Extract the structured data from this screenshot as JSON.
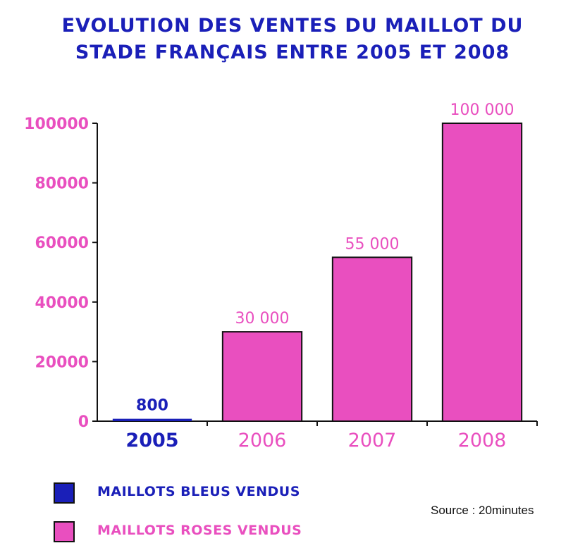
{
  "title_lines": [
    "EVOLUTION DES VENTES DU MAILLOT DU",
    "STADE FRANÇAIS ENTRE 2005 ET 2008"
  ],
  "colors": {
    "title": "#1a1fb8",
    "blue": "#1a1fb8",
    "pink": "#e94fbf",
    "axis": "#111111"
  },
  "chart_data": {
    "type": "bar",
    "title": "EVOLUTION DES VENTES DU MAILLOT DU STADE FRANÇAIS ENTRE 2005 ET 2008",
    "xlabel": "",
    "ylabel": "",
    "ylim": [
      0,
      100000
    ],
    "yticks": [
      "0",
      "20000",
      "40000",
      "60000",
      "80000",
      "100000"
    ],
    "categories": [
      "2005",
      "2006",
      "2007",
      "2008"
    ],
    "bars": [
      {
        "category": "2005",
        "value": 800,
        "label": "800",
        "series": "MAILLOTS BLEUS VENDUS",
        "color": "#1a1fb8"
      },
      {
        "category": "2006",
        "value": 30000,
        "label": "30 000",
        "series": "MAILLOTS ROSES VENDUS",
        "color": "#e94fbf"
      },
      {
        "category": "2007",
        "value": 55000,
        "label": "55 000",
        "series": "MAILLOTS ROSES VENDUS",
        "color": "#e94fbf"
      },
      {
        "category": "2008",
        "value": 100000,
        "label": "100 000",
        "series": "MAILLOTS ROSES VENDUS",
        "color": "#e94fbf"
      }
    ],
    "grid": false,
    "legend_position": "bottom-left"
  },
  "legend": [
    {
      "label": "MAILLOTS BLEUS VENDUS",
      "color": "#1a1fb8"
    },
    {
      "label": "MAILLOTS ROSES VENDUS",
      "color": "#e94fbf"
    }
  ],
  "source": "Source : 20minutes"
}
